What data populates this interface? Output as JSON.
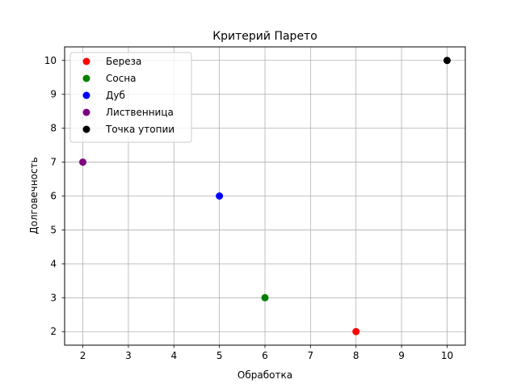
{
  "chart_data": {
    "type": "scatter",
    "title": "Критерий Парето",
    "xlabel": "Обработка",
    "ylabel": "Долговечность",
    "xlim": [
      1.6,
      10.4
    ],
    "ylim": [
      1.6,
      10.4
    ],
    "xticks": [
      2,
      3,
      4,
      5,
      6,
      7,
      8,
      9,
      10
    ],
    "yticks": [
      2,
      3,
      4,
      5,
      6,
      7,
      8,
      9,
      10
    ],
    "grid": true,
    "legend_position": "top-left",
    "series": [
      {
        "name": "Береза",
        "color": "#ff0000",
        "points": [
          {
            "x": 8,
            "y": 2
          }
        ]
      },
      {
        "name": "Сосна",
        "color": "#008000",
        "points": [
          {
            "x": 6,
            "y": 3
          }
        ]
      },
      {
        "name": "Дуб",
        "color": "#0000ff",
        "points": [
          {
            "x": 5,
            "y": 6
          }
        ]
      },
      {
        "name": "Лиственница",
        "color": "#800080",
        "points": [
          {
            "x": 2,
            "y": 7
          }
        ]
      },
      {
        "name": "Точка утопии",
        "color": "#000000",
        "points": [
          {
            "x": 10,
            "y": 10
          }
        ]
      }
    ]
  }
}
